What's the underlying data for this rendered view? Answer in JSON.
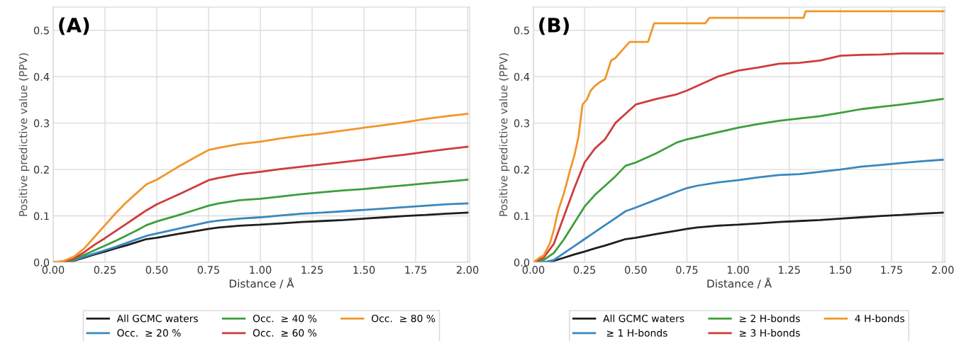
{
  "chart_data": [
    {
      "type": "line",
      "xlabel": "Distance / Å",
      "ylabel": "Positive predictive value (PPV)",
      "annotations": [
        "(A)"
      ],
      "xlim": [
        0,
        2.01
      ],
      "ylim": [
        0,
        0.55
      ],
      "xticks": [
        {
          "value": 0,
          "label": "0.00"
        },
        {
          "value": 0.25,
          "label": "0.25"
        },
        {
          "value": 0.5,
          "label": "0.50"
        },
        {
          "value": 0.75,
          "label": "0.75"
        },
        {
          "value": 1,
          "label": "1.00"
        },
        {
          "value": 1.25,
          "label": "1.25"
        },
        {
          "value": 1.5,
          "label": "1.50"
        },
        {
          "value": 1.75,
          "label": "1.75"
        },
        {
          "value": 2,
          "label": "2.00"
        }
      ],
      "yticks": [
        {
          "value": 0,
          "label": "0.0"
        },
        0.1,
        0.2,
        0.3,
        0.4,
        0.5
      ],
      "grid": true,
      "legend": "bottom",
      "marker": "none",
      "line_style": "solid",
      "x": [
        0,
        0.05,
        0.1,
        0.15,
        0.2,
        0.25,
        0.3,
        0.35,
        0.4,
        0.45,
        0.5,
        0.6,
        0.7,
        0.75,
        0.8,
        0.9,
        1.0,
        1.1,
        1.2,
        1.3,
        1.4,
        1.5,
        1.6,
        1.7,
        1.8,
        1.9,
        2.0
      ],
      "series": [
        {
          "name": "All GCMC waters",
          "color": "#1f1f1f",
          "values": [
            0,
            0,
            0.003,
            0.01,
            0.017,
            0.023,
            0.03,
            0.036,
            0.043,
            0.05,
            0.053,
            0.061,
            0.068,
            0.072,
            0.075,
            0.079,
            0.081,
            0.084,
            0.087,
            0.089,
            0.091,
            0.094,
            0.097,
            0.1,
            0.102,
            0.105,
            0.107
          ]
        },
        {
          "name": "Occ.  ≥ 20 %",
          "color": "#3a87bf",
          "values": [
            0,
            0,
            0.004,
            0.012,
            0.019,
            0.026,
            0.033,
            0.041,
            0.049,
            0.057,
            0.062,
            0.072,
            0.082,
            0.087,
            0.09,
            0.094,
            0.097,
            0.101,
            0.105,
            0.107,
            0.11,
            0.113,
            0.116,
            0.119,
            0.122,
            0.125,
            0.127
          ]
        },
        {
          "name": "Occ.  ≥ 40 %",
          "color": "#3c9f3c",
          "values": [
            0,
            0,
            0.006,
            0.016,
            0.026,
            0.036,
            0.046,
            0.057,
            0.068,
            0.08,
            0.088,
            0.101,
            0.115,
            0.122,
            0.127,
            0.134,
            0.137,
            0.142,
            0.147,
            0.151,
            0.155,
            0.158,
            0.162,
            0.166,
            0.17,
            0.174,
            0.178
          ]
        },
        {
          "name": "Occ.  ≥ 60 %",
          "color": "#cf3b3b",
          "values": [
            0,
            0,
            0.008,
            0.022,
            0.038,
            0.052,
            0.067,
            0.082,
            0.097,
            0.112,
            0.125,
            0.145,
            0.166,
            0.177,
            0.182,
            0.19,
            0.195,
            0.201,
            0.206,
            0.211,
            0.216,
            0.221,
            0.227,
            0.232,
            0.238,
            0.244,
            0.249
          ]
        },
        {
          "name": "Occ.  ≥ 80 %",
          "color": "#f0962b",
          "values": [
            0,
            0.003,
            0.012,
            0.03,
            0.055,
            0.08,
            0.105,
            0.128,
            0.148,
            0.168,
            0.178,
            0.205,
            0.23,
            0.242,
            0.247,
            0.255,
            0.26,
            0.267,
            0.273,
            0.278,
            0.284,
            0.29,
            0.296,
            0.302,
            0.309,
            0.315,
            0.32
          ]
        }
      ]
    },
    {
      "type": "line",
      "xlabel": "Distance / Å",
      "ylabel": "Positive predictive value (PPV)",
      "annotations": [
        "(B)"
      ],
      "xlim": [
        0,
        2.01
      ],
      "ylim": [
        0,
        0.55
      ],
      "xticks": [
        {
          "value": 0,
          "label": "0.00"
        },
        {
          "value": 0.25,
          "label": "0.25"
        },
        {
          "value": 0.5,
          "label": "0.50"
        },
        {
          "value": 0.75,
          "label": "0.75"
        },
        {
          "value": 1,
          "label": "1.00"
        },
        {
          "value": 1.25,
          "label": "1.25"
        },
        {
          "value": 1.5,
          "label": "1.50"
        },
        {
          "value": 1.75,
          "label": "1.75"
        },
        {
          "value": 2,
          "label": "2.00"
        }
      ],
      "yticks": [
        {
          "value": 0,
          "label": "0.0"
        },
        0.1,
        0.2,
        0.3,
        0.4,
        0.5
      ],
      "grid": true,
      "legend": "bottom",
      "marker": "none",
      "line_style": "solid",
      "x": [
        0,
        0.05,
        0.1,
        0.15,
        0.2,
        0.25,
        0.3,
        0.35,
        0.4,
        0.45,
        0.5,
        0.6,
        0.7,
        0.75,
        0.8,
        0.9,
        1.0,
        1.1,
        1.2,
        1.3,
        1.4,
        1.5,
        1.6,
        1.7,
        1.8,
        1.9,
        2.0
      ],
      "series": [
        {
          "name": "All GCMC waters",
          "color": "#1f1f1f",
          "values": [
            0,
            0,
            0.003,
            0.01,
            0.017,
            0.023,
            0.03,
            0.036,
            0.043,
            0.05,
            0.053,
            0.061,
            0.068,
            0.072,
            0.075,
            0.079,
            0.081,
            0.084,
            0.087,
            0.089,
            0.091,
            0.094,
            0.097,
            0.1,
            0.102,
            0.105,
            0.107
          ]
        },
        {
          "name": " ≥ 1 H-bonds",
          "color": "#3a87bf",
          "values": [
            0,
            0,
            0.005,
            0.02,
            0.035,
            0.05,
            0.065,
            0.08,
            0.095,
            0.11,
            0.118,
            0.135,
            0.152,
            0.16,
            0.165,
            0.172,
            0.177,
            0.183,
            0.188,
            0.19,
            0.195,
            0.2,
            0.206,
            0.21,
            0.214,
            0.218,
            0.221
          ]
        },
        {
          "name": "≥ 2 H-bonds",
          "color": "#3c9f3c",
          "values": [
            0,
            0.005,
            0.02,
            0.05,
            0.085,
            0.12,
            0.145,
            0.165,
            0.185,
            0.208,
            0.215,
            0.235,
            0.258,
            0.265,
            0.27,
            0.28,
            0.29,
            0.298,
            0.305,
            0.31,
            0.315,
            0.322,
            0.33,
            0.335,
            0.34,
            0.346,
            0.352
          ]
        },
        {
          "name": "≥ 3 H-bonds",
          "color": "#cf3b3b",
          "values": [
            0,
            0.01,
            0.04,
            0.1,
            0.16,
            0.215,
            0.245,
            0.265,
            0.3,
            0.32,
            0.34,
            0.352,
            0.362,
            0.37,
            0.38,
            0.4,
            0.413,
            0.42,
            0.428,
            0.43,
            0.435,
            0.445,
            0.447,
            0.448,
            0.45,
            0.45,
            0.45
          ]
        },
        {
          "name": "4 H-bonds",
          "color": "#f0962b",
          "x": [
            0,
            0.03,
            0.05,
            0.08,
            0.1,
            0.12,
            0.15,
            0.18,
            0.2,
            0.22,
            0.24,
            0.26,
            0.28,
            0.3,
            0.33,
            0.35,
            0.38,
            0.4,
            0.43,
            0.45,
            0.47,
            0.5,
            0.56,
            0.59,
            0.84,
            0.86,
            1.32,
            1.33,
            2.01
          ],
          "values": [
            0,
            0.01,
            0.015,
            0.04,
            0.07,
            0.11,
            0.15,
            0.2,
            0.23,
            0.27,
            0.34,
            0.35,
            0.37,
            0.38,
            0.39,
            0.395,
            0.435,
            0.44,
            0.455,
            0.465,
            0.475,
            0.475,
            0.475,
            0.515,
            0.515,
            0.527,
            0.527,
            0.541,
            0.541
          ]
        }
      ]
    }
  ]
}
